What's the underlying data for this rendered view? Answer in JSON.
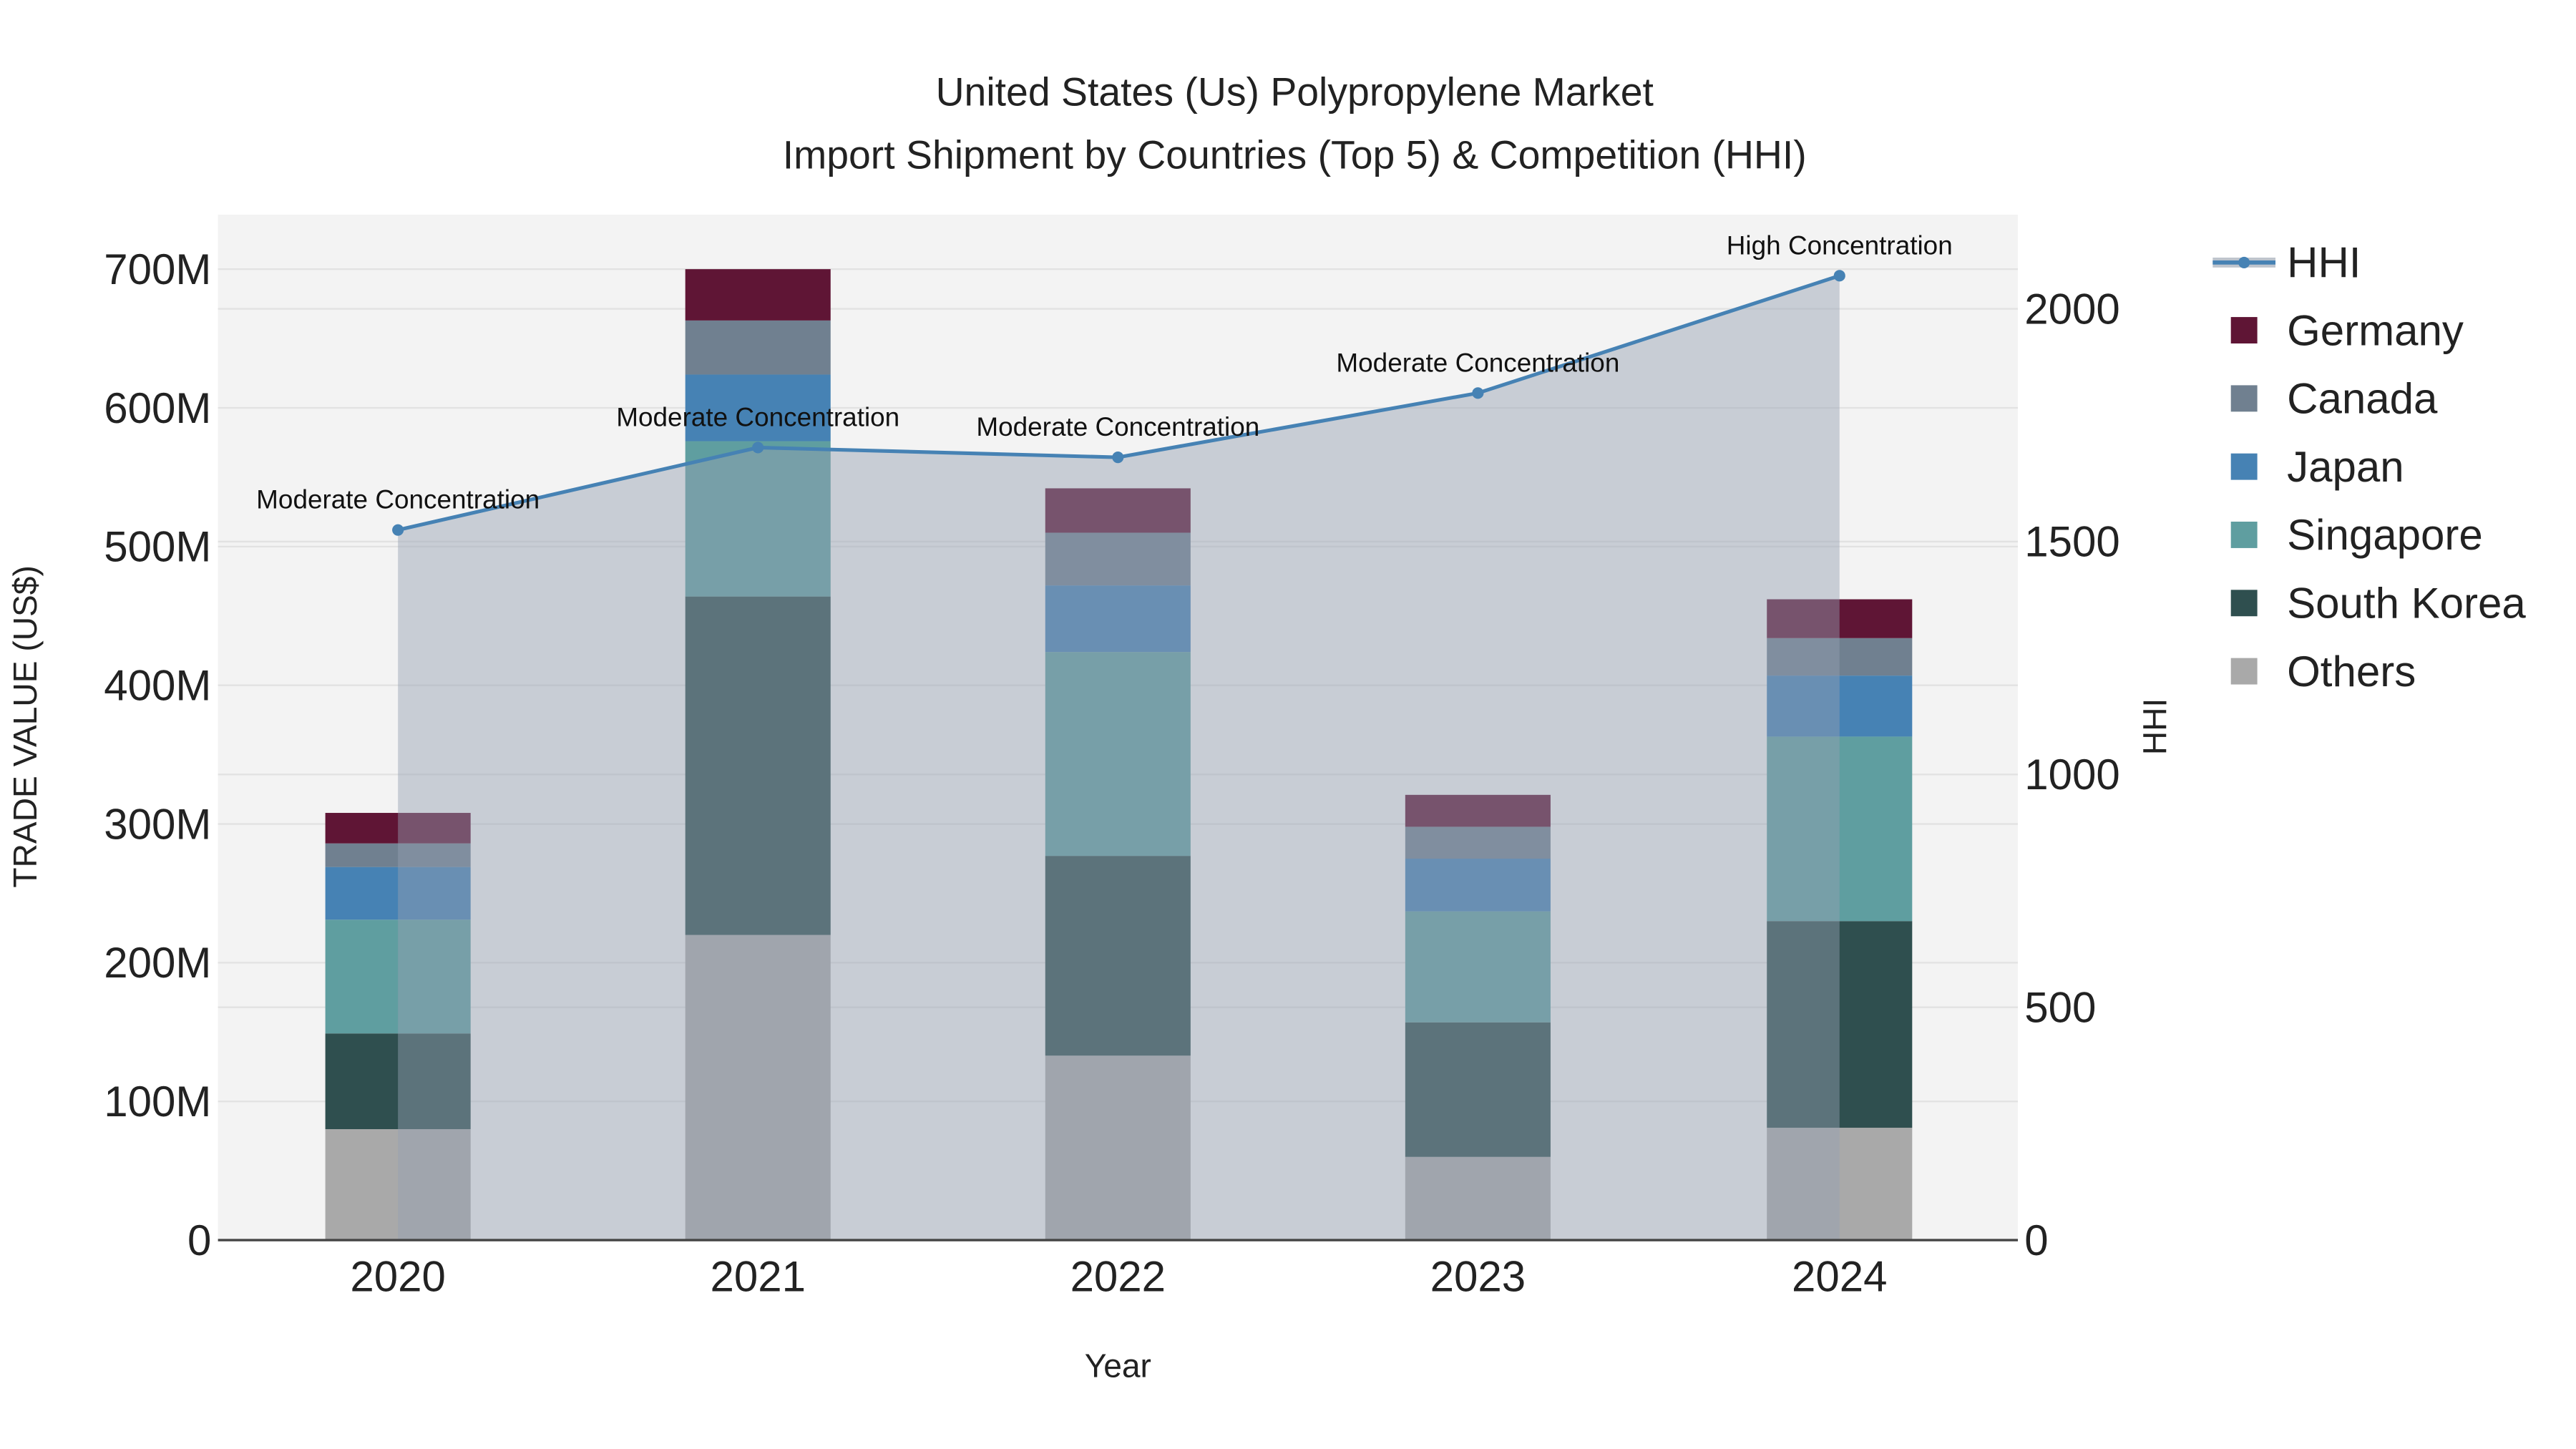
{
  "chart_data": {
    "type": "bar",
    "stacked": true,
    "title": "United States (Us) Polypropylene Market",
    "subtitle": "Import Shipment by Countries (Top 5) & Competition (HHI)",
    "xlabel": "Year",
    "ylabel": "TRADE VALUE (US$)",
    "y2label": "HHI",
    "categories": [
      "2020",
      "2021",
      "2022",
      "2023",
      "2024"
    ],
    "ylim": [
      0,
      740
    ],
    "yticks": [
      0,
      100,
      200,
      300,
      400,
      500,
      600,
      700
    ],
    "ytick_labels": [
      "0",
      "100M",
      "200M",
      "300M",
      "400M",
      "500M",
      "600M",
      "700M"
    ],
    "y2lim": [
      0,
      2200
    ],
    "y2ticks": [
      0,
      500,
      1000,
      1500,
      2000
    ],
    "y2tick_labels": [
      "0",
      "500",
      "1000",
      "1500",
      "2000"
    ],
    "value_unit": "millions US$",
    "series": [
      {
        "name": "Others",
        "color": "#a9a9a9",
        "values": [
          80,
          220,
          133,
          60,
          81
        ]
      },
      {
        "name": "South Korea",
        "color": "#2f4f4f",
        "values": [
          69,
          244,
          144,
          97,
          149
        ]
      },
      {
        "name": "Singapore",
        "color": "#5f9ea0",
        "values": [
          82,
          112,
          147,
          80,
          133
        ]
      },
      {
        "name": "Japan",
        "color": "#4682b4",
        "values": [
          38,
          48,
          48,
          38,
          44
        ]
      },
      {
        "name": "Canada",
        "color": "#708090",
        "values": [
          17,
          39,
          38,
          23,
          27
        ]
      },
      {
        "name": "Germany",
        "color": "#5f1535",
        "values": [
          22,
          37,
          32,
          23,
          28
        ]
      }
    ],
    "hhi": {
      "name": "HHI",
      "color": "#4682b4",
      "values": [
        1525,
        1702,
        1681,
        1819,
        2071
      ],
      "annotations": [
        "Moderate Concentration",
        "Moderate Concentration",
        "Moderate Concentration",
        "Moderate Concentration",
        "High Concentration"
      ]
    },
    "legend_order": [
      "HHI",
      "Germany",
      "Canada",
      "Japan",
      "Singapore",
      "South Korea",
      "Others"
    ],
    "legend_position": "right",
    "grid": true
  }
}
